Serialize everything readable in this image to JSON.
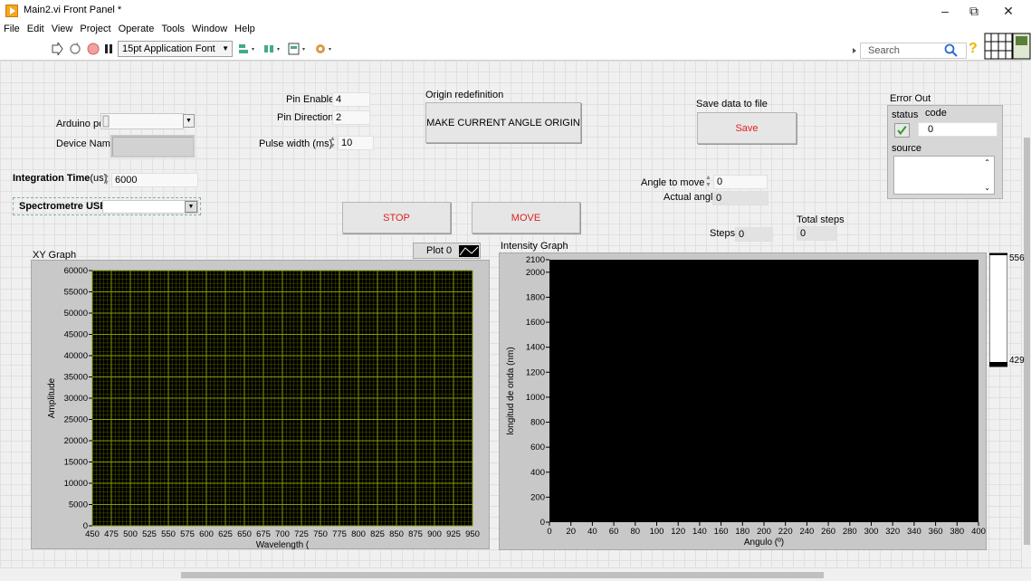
{
  "window": {
    "title": "Main2.vi Front Panel *",
    "minimize": "–",
    "restore": "⧉",
    "close": "✕"
  },
  "menu": [
    "File",
    "Edit",
    "View",
    "Project",
    "Operate",
    "Tools",
    "Window",
    "Help"
  ],
  "toolbar": {
    "font": "15pt Application Font",
    "search_placeholder": "Search",
    "icons": [
      "run-arrow-icon",
      "run-continuously-icon",
      "abort-icon",
      "pause-icon",
      "align-icon",
      "distribute-icon",
      "resize-icon",
      "reorder-icon"
    ]
  },
  "controls": {
    "arduino_port_label": "Arduino port",
    "device_name_label": "Device Name",
    "integration_time_label": "Integration Time",
    "integration_time_unit": "(us)",
    "integration_time_value": "6000",
    "spectrometre_label": "Spectrometre USB",
    "pin_enable_label": "Pin Enable",
    "pin_enable_value": "4",
    "pin_direction_label": "Pin Direction",
    "pin_direction_value": "2",
    "pulse_width_label": "Pulse width (ms)",
    "pulse_width_value": "10",
    "origin_redefinition_label": "Origin redefinition",
    "make_origin_button": "MAKE CURRENT ANGLE ORIGIN",
    "save_label": "Save data to file",
    "save_button": "Save",
    "stop_button": "STOP",
    "move_button": "MOVE",
    "angle_to_move_label": "Angle to move",
    "angle_to_move_value": "0",
    "actual_angle_label": "Actual angle",
    "actual_angle_value": "0",
    "steps_label": "Steps",
    "steps_value": "0",
    "total_steps_label": "Total steps",
    "total_steps_value": "0",
    "plot_legend": "Plot 0"
  },
  "error_out": {
    "title": "Error Out",
    "status_label": "status",
    "code_label": "code",
    "code_value": "0",
    "source_label": "source"
  },
  "colors": {
    "xy_plot_bg": "#000000",
    "xy_grid": "#8a9a00",
    "stop_move_text": "#e02020",
    "save_text": "#e02020"
  },
  "chart_data": [
    {
      "type": "line",
      "title": "XY Graph",
      "xlabel": "Wavelength (",
      "ylabel": "Amplitude",
      "xlim": [
        450,
        950
      ],
      "ylim": [
        0,
        60000
      ],
      "xticks": [
        450,
        475,
        500,
        525,
        550,
        575,
        600,
        625,
        650,
        675,
        700,
        725,
        750,
        775,
        800,
        825,
        850,
        875,
        900,
        925,
        950
      ],
      "yticks": [
        0,
        5000,
        10000,
        15000,
        20000,
        25000,
        30000,
        35000,
        40000,
        45000,
        50000,
        55000,
        60000
      ],
      "grid": true,
      "series": []
    },
    {
      "type": "heatmap",
      "title": "Intensity Graph",
      "xlabel": "Angulo (º)",
      "ylabel": "longitud de onda (nm)",
      "xlim": [
        0,
        400
      ],
      "ylim": [
        0,
        2100
      ],
      "xticks": [
        0,
        20,
        40,
        60,
        80,
        100,
        120,
        140,
        160,
        180,
        200,
        220,
        240,
        260,
        280,
        300,
        320,
        340,
        360,
        380,
        400
      ],
      "yticks": [
        0,
        200,
        400,
        600,
        800,
        1000,
        1200,
        1400,
        1600,
        1800,
        2000,
        2100
      ],
      "colorbar_ticks": [
        "556",
        "429"
      ],
      "grid": false
    }
  ]
}
